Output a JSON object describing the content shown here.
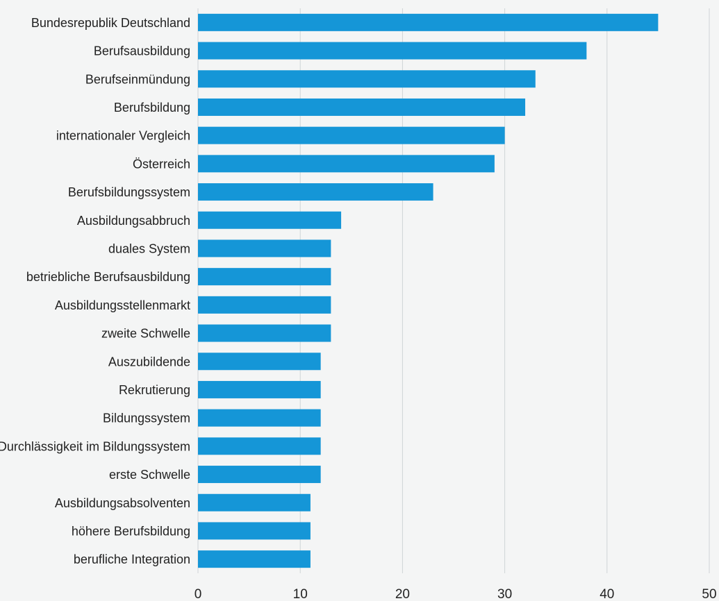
{
  "chart_data": {
    "type": "bar",
    "orientation": "horizontal",
    "categories": [
      "Bundesrepublik Deutschland",
      "Berufsausbildung",
      "Berufseinmündung",
      "Berufsbildung",
      "internationaler Vergleich",
      "Österreich",
      "Berufsbildungssystem",
      "Ausbildungsabbruch",
      "duales System",
      "betriebliche Berufsausbildung",
      "Ausbildungsstellenmarkt",
      "zweite Schwelle",
      "Auszubildende",
      "Rekrutierung",
      "Bildungssystem",
      "Durchlässigkeit im Bildungssystem",
      "erste Schwelle",
      "Ausbildungsabsolventen",
      "höhere Berufsbildung",
      "berufliche Integration"
    ],
    "values": [
      45,
      38,
      33,
      32,
      30,
      29,
      23,
      14,
      13,
      13,
      13,
      13,
      12,
      12,
      12,
      12,
      12,
      11,
      11,
      11
    ],
    "xlim": [
      0,
      50
    ],
    "xticks": [
      "0",
      "10",
      "20",
      "30",
      "40",
      "50"
    ],
    "grid": "vertical",
    "bar_color": "#1596d7",
    "grid_color": "#cfd4d6",
    "background": "#f4f5f5"
  }
}
